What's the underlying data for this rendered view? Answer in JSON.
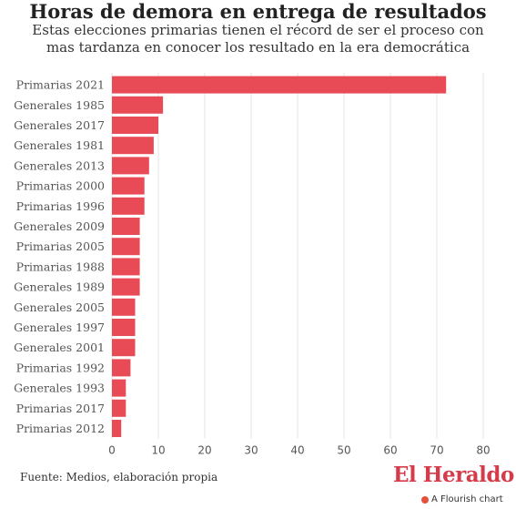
{
  "header": {
    "title": "Horas de demora en entrega de resultados",
    "subtitle_line1": "Estas elecciones primarias tienen el récord de ser el proceso con",
    "subtitle_line2": "mas tardanza en conocer los resultado en la era democrática"
  },
  "footer": {
    "source": "Fuente: Medios, elaboración propia",
    "brand": "El Heraldo",
    "flourish_label": "A Flourish chart"
  },
  "colors": {
    "bar": "#e84a56",
    "grid": "#e6e6e6",
    "text": "#555555"
  },
  "chart_data": {
    "type": "bar",
    "orientation": "horizontal",
    "categories": [
      "Primarias 2021",
      "Generales 1985",
      "Generales 2017",
      "Generales 1981",
      "Generales 2013",
      "Primarias 2000",
      "Primarias 1996",
      "Generales 2009",
      "Primarias 2005",
      "Primarias 1988",
      "Generales 1989",
      "Generales 2005",
      "Generales 1997",
      "Generales 2001",
      "Primarias 1992",
      "Generales 1993",
      "Primarias 2017",
      "Primarias 2012"
    ],
    "values": [
      72,
      11,
      10,
      9,
      8,
      7,
      7,
      6,
      6,
      6,
      6,
      5,
      5,
      5,
      4,
      3,
      3,
      2
    ],
    "xlim": [
      0,
      80
    ],
    "xticks": [
      0,
      10,
      20,
      30,
      40,
      50,
      60,
      70,
      80
    ],
    "grid": true
  }
}
